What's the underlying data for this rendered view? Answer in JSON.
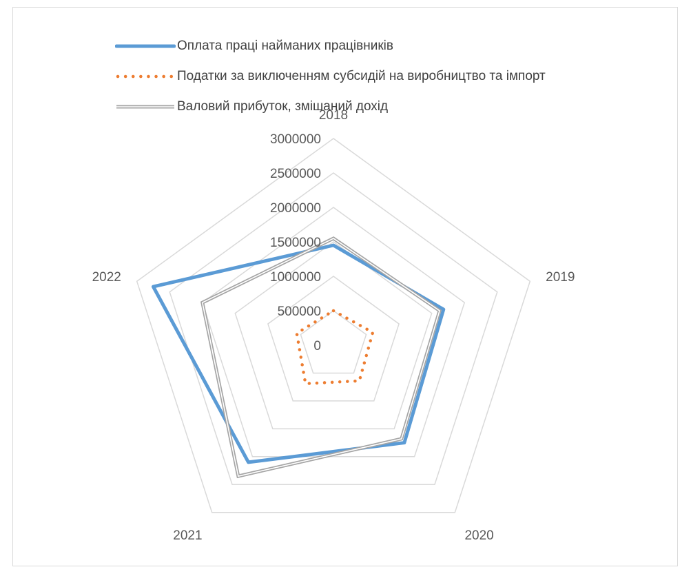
{
  "chart_data": {
    "type": "radar",
    "categories": [
      "2018",
      "2019",
      "2020",
      "2021",
      "2022"
    ],
    "rticks": [
      "0",
      "500000",
      "1000000",
      "1500000",
      "2000000",
      "2500000",
      "3000000"
    ],
    "rlim": [
      0,
      3000000
    ],
    "grid": true,
    "legend_position": "top",
    "series": [
      {
        "name": "Оплата праці найманих працівників",
        "values": [
          1450000,
          1680000,
          1750000,
          2100000,
          2750000
        ],
        "color": "#5b9bd5",
        "style": "solid"
      },
      {
        "name": "Податки за виключенням субсидій на виробництво та імпорт",
        "values": [
          500000,
          600000,
          640000,
          690000,
          560000
        ],
        "color": "#ed7d31",
        "style": "dotted"
      },
      {
        "name": "Валовий прибуток, змішаний дохід",
        "values": [
          1550000,
          1620000,
          1680000,
          2350000,
          2000000
        ],
        "color": "#a5a5a5",
        "style": "double"
      }
    ]
  }
}
